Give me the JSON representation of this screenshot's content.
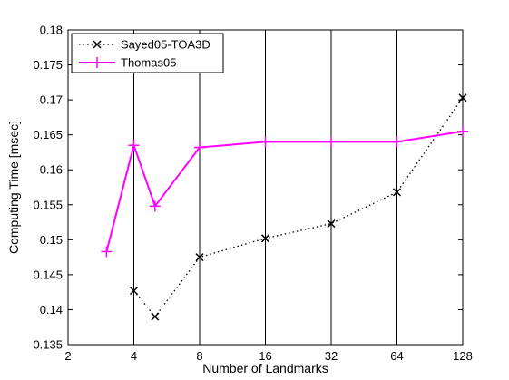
{
  "chart_data": {
    "type": "line",
    "title": "",
    "xlabel": "Number of Landmarks",
    "ylabel": "Computing Time [msec]",
    "x_scale": "log2",
    "xlim": [
      2,
      128
    ],
    "ylim": [
      0.135,
      0.18
    ],
    "x_ticks": [
      2,
      4,
      8,
      16,
      32,
      64,
      128
    ],
    "x_tick_labels": [
      "2",
      "4",
      "8",
      "16",
      "32",
      "64",
      "128"
    ],
    "y_ticks": [
      0.135,
      0.14,
      0.145,
      0.15,
      0.155,
      0.16,
      0.165,
      0.17,
      0.175,
      0.18
    ],
    "y_tick_labels": [
      "0.135",
      "0.14",
      "0.145",
      "0.15",
      "0.155",
      "0.16",
      "0.165",
      "0.17",
      "0.175",
      "0.18"
    ],
    "grid": "vertical lines at x ticks",
    "legend_position": "top-left",
    "series": [
      {
        "name": "Sayed05-TOA3D",
        "color": "#000000",
        "line_style": "dotted",
        "marker": "x",
        "x": [
          4,
          5,
          8,
          16,
          32,
          64,
          128
        ],
        "y": [
          0.1427,
          0.139,
          0.1475,
          0.1502,
          0.1523,
          0.1568,
          0.1703
        ]
      },
      {
        "name": "Thomas05",
        "color": "#ff00ff",
        "line_style": "solid",
        "marker": "+",
        "x": [
          3,
          4,
          5,
          8,
          16,
          32,
          64,
          128
        ],
        "y": [
          0.1483,
          0.1635,
          0.1548,
          0.1632,
          0.164,
          0.164,
          0.164,
          0.1655
        ]
      }
    ]
  }
}
